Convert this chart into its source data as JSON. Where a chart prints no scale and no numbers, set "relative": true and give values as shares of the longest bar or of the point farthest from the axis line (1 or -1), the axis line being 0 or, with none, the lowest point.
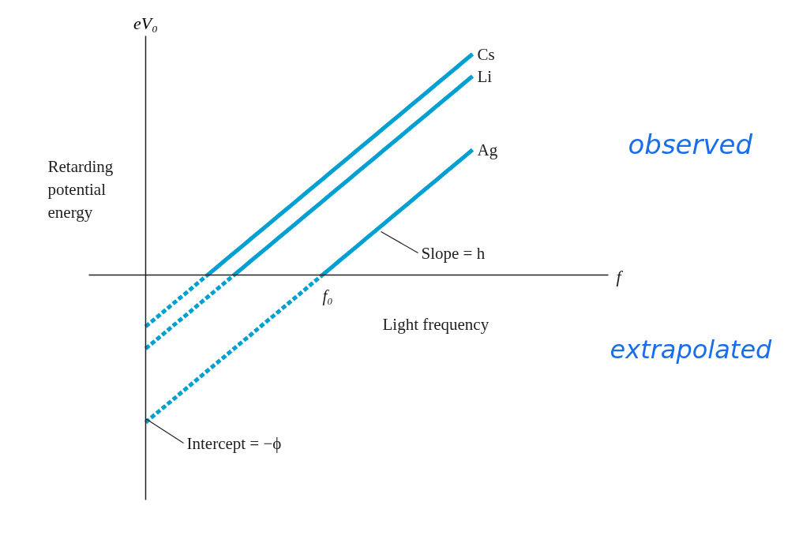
{
  "chart_data": {
    "type": "line",
    "relative": true,
    "ylabel": "eV₀",
    "categories": [
      null,
      null,
      null,
      null,
      null,
      null,
      null,
      null,
      null,
      null,
      null,
      null,
      null,
      null,
      null,
      null,
      null,
      null,
      null,
      null,
      null,
      null,
      null,
      null,
      null,
      null,
      null,
      null,
      null,
      null,
      null,
      null,
      null,
      null,
      null,
      null,
      null,
      null
    ],
    "series": [
      {
        "name": "Cs",
        "color": "#00a0d2",
        "line_style": "solid",
        "values": [
          null,
          null,
          null,
          null,
          null,
          null,
          null,
          0,
          0.033,
          0.067,
          0.1,
          0.133,
          0.167,
          0.2,
          0.233,
          0.267,
          0.3,
          0.333,
          0.367,
          0.4,
          0.433,
          0.467,
          0.5,
          0.533,
          0.567,
          0.6,
          0.633,
          0.667,
          0.7,
          0.733,
          0.767,
          0.8,
          0.833,
          0.867,
          0.9,
          0.933,
          0.967,
          1
        ]
      },
      {
        "color": "#00a0d2",
        "line_style": "dashed",
        "values": [
          -0.233,
          -0.2,
          -0.167,
          -0.133,
          -0.1,
          -0.067,
          -0.033,
          0,
          null,
          null,
          null,
          null,
          null,
          null,
          null,
          null,
          null,
          null,
          null,
          null,
          null,
          null,
          null,
          null,
          null,
          null,
          null,
          null,
          null,
          null,
          null,
          null,
          null,
          null,
          null,
          null,
          null,
          null
        ]
      },
      {
        "name": "Li",
        "color": "#00a0d2",
        "line_style": "solid",
        "values": [
          null,
          null,
          null,
          null,
          null,
          null,
          null,
          null,
          null,
          null,
          0,
          0.033,
          0.067,
          0.1,
          0.133,
          0.167,
          0.2,
          0.233,
          0.267,
          0.3,
          0.333,
          0.367,
          0.4,
          0.433,
          0.467,
          0.5,
          0.533,
          0.567,
          0.6,
          0.633,
          0.667,
          0.7,
          0.733,
          0.767,
          0.8,
          0.833,
          0.867,
          0.9
        ]
      },
      {
        "color": "#00a0d2",
        "line_style": "dashed",
        "values": [
          -0.333,
          -0.3,
          -0.267,
          -0.233,
          -0.2,
          -0.167,
          -0.133,
          -0.1,
          -0.067,
          -0.033,
          0,
          null,
          null,
          null,
          null,
          null,
          null,
          null,
          null,
          null,
          null,
          null,
          null,
          null,
          null,
          null,
          null,
          null,
          null,
          null,
          null,
          null,
          null,
          null,
          null,
          null,
          null,
          null
        ]
      },
      {
        "name": "Ag",
        "color": "#00a0d2",
        "line_style": "solid",
        "values": [
          null,
          null,
          null,
          null,
          null,
          null,
          null,
          null,
          null,
          null,
          null,
          null,
          null,
          null,
          null,
          null,
          null,
          null,
          null,
          null,
          0,
          0.033,
          0.067,
          0.1,
          0.133,
          0.167,
          0.2,
          0.233,
          0.267,
          0.3,
          0.333,
          0.367,
          0.4,
          0.433,
          0.467,
          0.5,
          0.533,
          0.567
        ]
      },
      {
        "color": "#00a0d2",
        "line_style": "dashed",
        "values": [
          -0.667,
          -0.633,
          -0.6,
          -0.567,
          -0.533,
          -0.5,
          -0.467,
          -0.433,
          -0.4,
          -0.367,
          -0.333,
          -0.3,
          -0.267,
          -0.233,
          -0.2,
          -0.167,
          -0.133,
          -0.1,
          -0.067,
          -0.033,
          0,
          null,
          null,
          null,
          null,
          null,
          null,
          null,
          null,
          null,
          null,
          null,
          null,
          null,
          null,
          null,
          null,
          null
        ]
      }
    ],
    "annotations": [
      "Retarding potential energy",
      "Light frequency",
      "observed",
      "extrapolated",
      "Slope = h",
      "Intercept = −ϕ",
      "f₀",
      "f"
    ]
  }
}
